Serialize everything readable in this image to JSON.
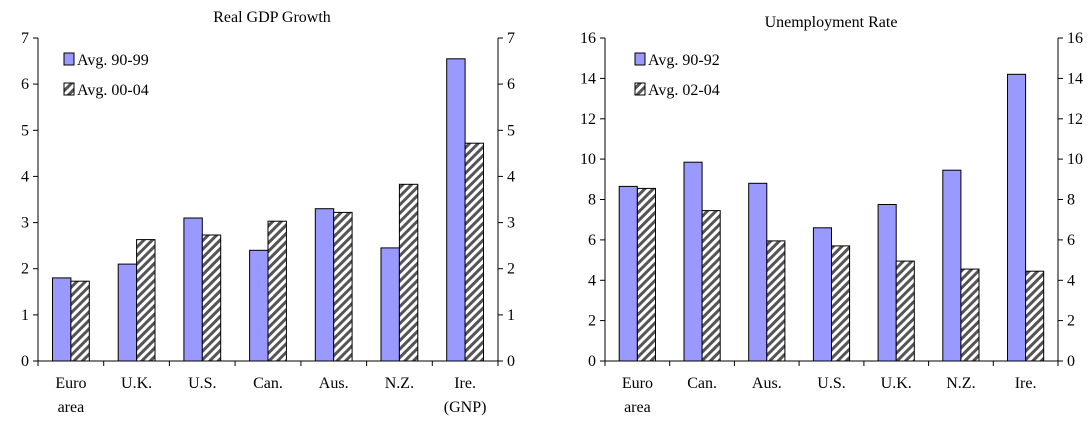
{
  "chart_data": [
    {
      "type": "bar",
      "title": "Real GDP Growth",
      "categories": [
        [
          "Euro",
          "area"
        ],
        [
          "U.K."
        ],
        [
          "U.S."
        ],
        [
          "Can."
        ],
        [
          "Aus."
        ],
        [
          "N.Z."
        ],
        [
          "Ire.",
          "(GNP)"
        ]
      ],
      "series": [
        {
          "name": "Avg. 90-99",
          "values": [
            1.8,
            2.1,
            3.1,
            2.4,
            3.3,
            2.45,
            6.55
          ],
          "fill": "#9999ff",
          "pattern": "solid"
        },
        {
          "name": "Avg. 00-04",
          "values": [
            1.73,
            2.63,
            2.73,
            3.03,
            3.22,
            3.83,
            4.72
          ],
          "fill": "#ffffff",
          "pattern": "diagonal-hatch"
        }
      ],
      "ylim": [
        0,
        7
      ],
      "yticks": [
        0,
        1,
        2,
        3,
        4,
        5,
        6,
        7
      ],
      "y_axis": "left and right",
      "legend": "top-left",
      "grid": false
    },
    {
      "type": "bar",
      "title": "Unemployment Rate",
      "categories": [
        [
          "Euro",
          "area"
        ],
        [
          "Can."
        ],
        [
          "Aus."
        ],
        [
          "U.S."
        ],
        [
          "U.K."
        ],
        [
          "N.Z."
        ],
        [
          "Ire."
        ]
      ],
      "series": [
        {
          "name": "Avg. 90-92",
          "values": [
            8.65,
            9.85,
            8.8,
            6.6,
            7.75,
            9.45,
            14.2
          ],
          "fill": "#9999ff",
          "pattern": "solid"
        },
        {
          "name": "Avg. 02-04",
          "values": [
            8.55,
            7.45,
            5.95,
            5.7,
            4.95,
            4.55,
            4.45
          ],
          "fill": "#ffffff",
          "pattern": "diagonal-hatch"
        }
      ],
      "ylim": [
        0,
        16
      ],
      "yticks": [
        0,
        2,
        4,
        6,
        8,
        10,
        12,
        14,
        16
      ],
      "y_axis": "left and right",
      "legend": "top-left",
      "grid": false
    }
  ]
}
